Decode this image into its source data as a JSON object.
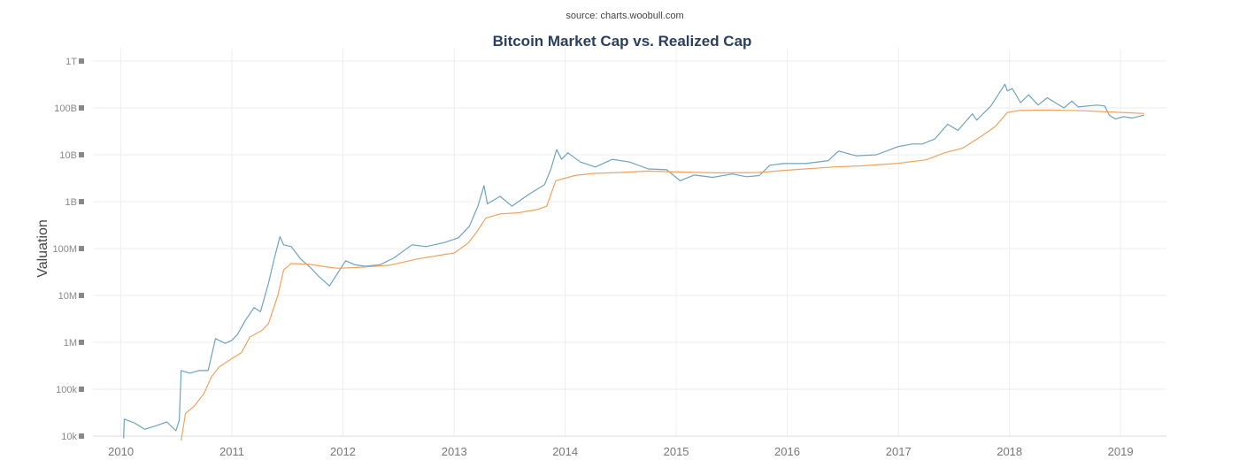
{
  "source_note": "source: charts.woobull.com",
  "chart_data": {
    "type": "line",
    "title": "Bitcoin Market Cap vs. Realized Cap",
    "xlabel": "",
    "ylabel": "Valuation",
    "y_scale": "log",
    "ylim": [
      10000,
      1000000000000
    ],
    "xlim": [
      "2009-10-01",
      "2019-06-01"
    ],
    "grid": true,
    "y_ticks": [
      {
        "value": 10000,
        "label": "10k"
      },
      {
        "value": 100000,
        "label": "100k"
      },
      {
        "value": 1000000,
        "label": "1M"
      },
      {
        "value": 10000000,
        "label": "10M"
      },
      {
        "value": 100000000,
        "label": "100M"
      },
      {
        "value": 1000000000,
        "label": "1B"
      },
      {
        "value": 10000000000,
        "label": "10B"
      },
      {
        "value": 100000000000,
        "label": "100B"
      },
      {
        "value": 1000000000000,
        "label": "1T"
      }
    ],
    "x_ticks": [
      {
        "value": "2010-01-01",
        "label": "2010"
      },
      {
        "value": "2011-01-01",
        "label": "2011"
      },
      {
        "value": "2012-01-01",
        "label": "2012"
      },
      {
        "value": "2013-01-01",
        "label": "2013"
      },
      {
        "value": "2014-01-01",
        "label": "2014"
      },
      {
        "value": "2015-01-01",
        "label": "2015"
      },
      {
        "value": "2016-01-01",
        "label": "2016"
      },
      {
        "value": "2017-01-01",
        "label": "2017"
      },
      {
        "value": "2018-01-01",
        "label": "2018"
      },
      {
        "value": "2019-01-01",
        "label": "2019"
      }
    ],
    "series": [
      {
        "color": "#6fa3bf",
        "points": [
          [
            "2010-01-10",
            9000
          ],
          [
            "2010-01-12",
            23000
          ],
          [
            "2010-02-15",
            19000
          ],
          [
            "2010-03-20",
            14000
          ],
          [
            "2010-05-01",
            17000
          ],
          [
            "2010-06-01",
            20000
          ],
          [
            "2010-07-01",
            13000
          ],
          [
            "2010-07-12",
            22000
          ],
          [
            "2010-07-18",
            250000
          ],
          [
            "2010-08-15",
            220000
          ],
          [
            "2010-09-15",
            250000
          ],
          [
            "2010-10-15",
            250000
          ],
          [
            "2010-11-08",
            1200000
          ],
          [
            "2010-12-10",
            950000
          ],
          [
            "2011-01-01",
            1100000
          ],
          [
            "2011-01-20",
            1500000
          ],
          [
            "2011-02-15",
            3000000
          ],
          [
            "2011-03-15",
            5500000
          ],
          [
            "2011-04-05",
            4500000
          ],
          [
            "2011-05-01",
            18000000
          ],
          [
            "2011-05-20",
            60000000
          ],
          [
            "2011-06-08",
            180000000
          ],
          [
            "2011-06-20",
            120000000
          ],
          [
            "2011-07-15",
            110000000
          ],
          [
            "2011-08-15",
            60000000
          ],
          [
            "2011-09-15",
            40000000
          ],
          [
            "2011-10-15",
            25000000
          ],
          [
            "2011-11-18",
            16000000
          ],
          [
            "2011-12-15",
            30000000
          ],
          [
            "2012-01-10",
            55000000
          ],
          [
            "2012-02-10",
            45000000
          ],
          [
            "2012-03-15",
            42000000
          ],
          [
            "2012-05-01",
            45000000
          ],
          [
            "2012-06-15",
            62000000
          ],
          [
            "2012-08-15",
            120000000
          ],
          [
            "2012-10-01",
            110000000
          ],
          [
            "2012-12-01",
            135000000
          ],
          [
            "2013-01-15",
            170000000
          ],
          [
            "2013-02-20",
            300000000
          ],
          [
            "2013-03-20",
            800000000
          ],
          [
            "2013-04-09",
            2200000000
          ],
          [
            "2013-04-20",
            900000000
          ],
          [
            "2013-06-01",
            1300000000
          ],
          [
            "2013-07-10",
            800000000
          ],
          [
            "2013-09-01",
            1400000000
          ],
          [
            "2013-10-25",
            2300000000
          ],
          [
            "2013-11-15",
            5000000000
          ],
          [
            "2013-12-04",
            13000000000
          ],
          [
            "2013-12-20",
            8000000000
          ],
          [
            "2014-01-10",
            11000000000
          ],
          [
            "2014-02-20",
            7000000000
          ],
          [
            "2014-04-10",
            5500000000
          ],
          [
            "2014-06-05",
            8000000000
          ],
          [
            "2014-08-01",
            7000000000
          ],
          [
            "2014-10-01",
            5000000000
          ],
          [
            "2014-12-01",
            4800000000
          ],
          [
            "2015-01-14",
            2800000000
          ],
          [
            "2015-03-01",
            3700000000
          ],
          [
            "2015-05-01",
            3300000000
          ],
          [
            "2015-07-05",
            3900000000
          ],
          [
            "2015-08-20",
            3400000000
          ],
          [
            "2015-10-01",
            3600000000
          ],
          [
            "2015-11-05",
            6000000000
          ],
          [
            "2015-12-20",
            6500000000
          ],
          [
            "2016-03-01",
            6500000000
          ],
          [
            "2016-05-15",
            7500000000
          ],
          [
            "2016-06-18",
            12000000000
          ],
          [
            "2016-08-15",
            9500000000
          ],
          [
            "2016-10-20",
            10000000000
          ],
          [
            "2016-12-31",
            15000000000
          ],
          [
            "2017-02-15",
            17000000000
          ],
          [
            "2017-03-20",
            17000000000
          ],
          [
            "2017-05-01",
            22000000000
          ],
          [
            "2017-06-12",
            45000000000
          ],
          [
            "2017-07-15",
            33000000000
          ],
          [
            "2017-09-01",
            75000000000
          ],
          [
            "2017-09-15",
            55000000000
          ],
          [
            "2017-11-01",
            110000000000
          ],
          [
            "2017-12-17",
            320000000000
          ],
          [
            "2017-12-25",
            230000000000
          ],
          [
            "2018-01-10",
            260000000000
          ],
          [
            "2018-02-06",
            130000000000
          ],
          [
            "2018-03-05",
            190000000000
          ],
          [
            "2018-04-05",
            115000000000
          ],
          [
            "2018-05-05",
            165000000000
          ],
          [
            "2018-06-29",
            100000000000
          ],
          [
            "2018-07-25",
            140000000000
          ],
          [
            "2018-08-15",
            105000000000
          ],
          [
            "2018-10-15",
            115000000000
          ],
          [
            "2018-11-10",
            110000000000
          ],
          [
            "2018-11-25",
            70000000000
          ],
          [
            "2018-12-15",
            58000000000
          ],
          [
            "2019-01-10",
            65000000000
          ],
          [
            "2019-02-08",
            61000000000
          ],
          [
            "2019-03-20",
            70000000000
          ]
        ]
      },
      {
        "color": "#f0a35e",
        "points": [
          [
            "2010-07-18",
            8000
          ],
          [
            "2010-08-01",
            30000
          ],
          [
            "2010-09-01",
            45000
          ],
          [
            "2010-10-01",
            80000
          ],
          [
            "2010-10-25",
            180000
          ],
          [
            "2010-11-20",
            300000
          ],
          [
            "2011-01-01",
            450000
          ],
          [
            "2011-02-01",
            600000
          ],
          [
            "2011-03-01",
            1300000
          ],
          [
            "2011-04-10",
            1800000
          ],
          [
            "2011-05-01",
            2500000
          ],
          [
            "2011-06-01",
            10000000
          ],
          [
            "2011-06-20",
            35000000
          ],
          [
            "2011-07-15",
            48000000
          ],
          [
            "2011-09-15",
            46000000
          ],
          [
            "2011-11-15",
            40000000
          ],
          [
            "2011-12-15",
            38000000
          ],
          [
            "2012-03-01",
            40000000
          ],
          [
            "2012-06-01",
            44000000
          ],
          [
            "2012-09-01",
            60000000
          ],
          [
            "2012-12-01",
            75000000
          ],
          [
            "2013-01-01",
            80000000
          ],
          [
            "2013-02-15",
            130000000
          ],
          [
            "2013-03-15",
            220000000
          ],
          [
            "2013-04-15",
            450000000
          ],
          [
            "2013-06-01",
            550000000
          ],
          [
            "2013-08-01",
            580000000
          ],
          [
            "2013-10-01",
            680000000
          ],
          [
            "2013-11-01",
            800000000
          ],
          [
            "2013-12-01",
            2800000000
          ],
          [
            "2014-02-01",
            3600000000
          ],
          [
            "2014-04-01",
            4000000000
          ],
          [
            "2014-07-01",
            4200000000
          ],
          [
            "2014-10-01",
            4500000000
          ],
          [
            "2015-01-01",
            4300000000
          ],
          [
            "2015-06-01",
            4100000000
          ],
          [
            "2015-10-01",
            4200000000
          ],
          [
            "2016-01-01",
            4700000000
          ],
          [
            "2016-06-01",
            5500000000
          ],
          [
            "2016-09-01",
            5800000000
          ],
          [
            "2017-01-01",
            6600000000
          ],
          [
            "2017-04-01",
            7800000000
          ],
          [
            "2017-06-01",
            11000000000
          ],
          [
            "2017-08-01",
            14000000000
          ],
          [
            "2017-10-01",
            25000000000
          ],
          [
            "2017-11-15",
            40000000000
          ],
          [
            "2017-12-25",
            80000000000
          ],
          [
            "2018-02-01",
            88000000000
          ],
          [
            "2018-05-01",
            90000000000
          ],
          [
            "2018-09-01",
            87000000000
          ],
          [
            "2018-12-01",
            82000000000
          ],
          [
            "2019-03-20",
            76000000000
          ]
        ]
      }
    ]
  }
}
